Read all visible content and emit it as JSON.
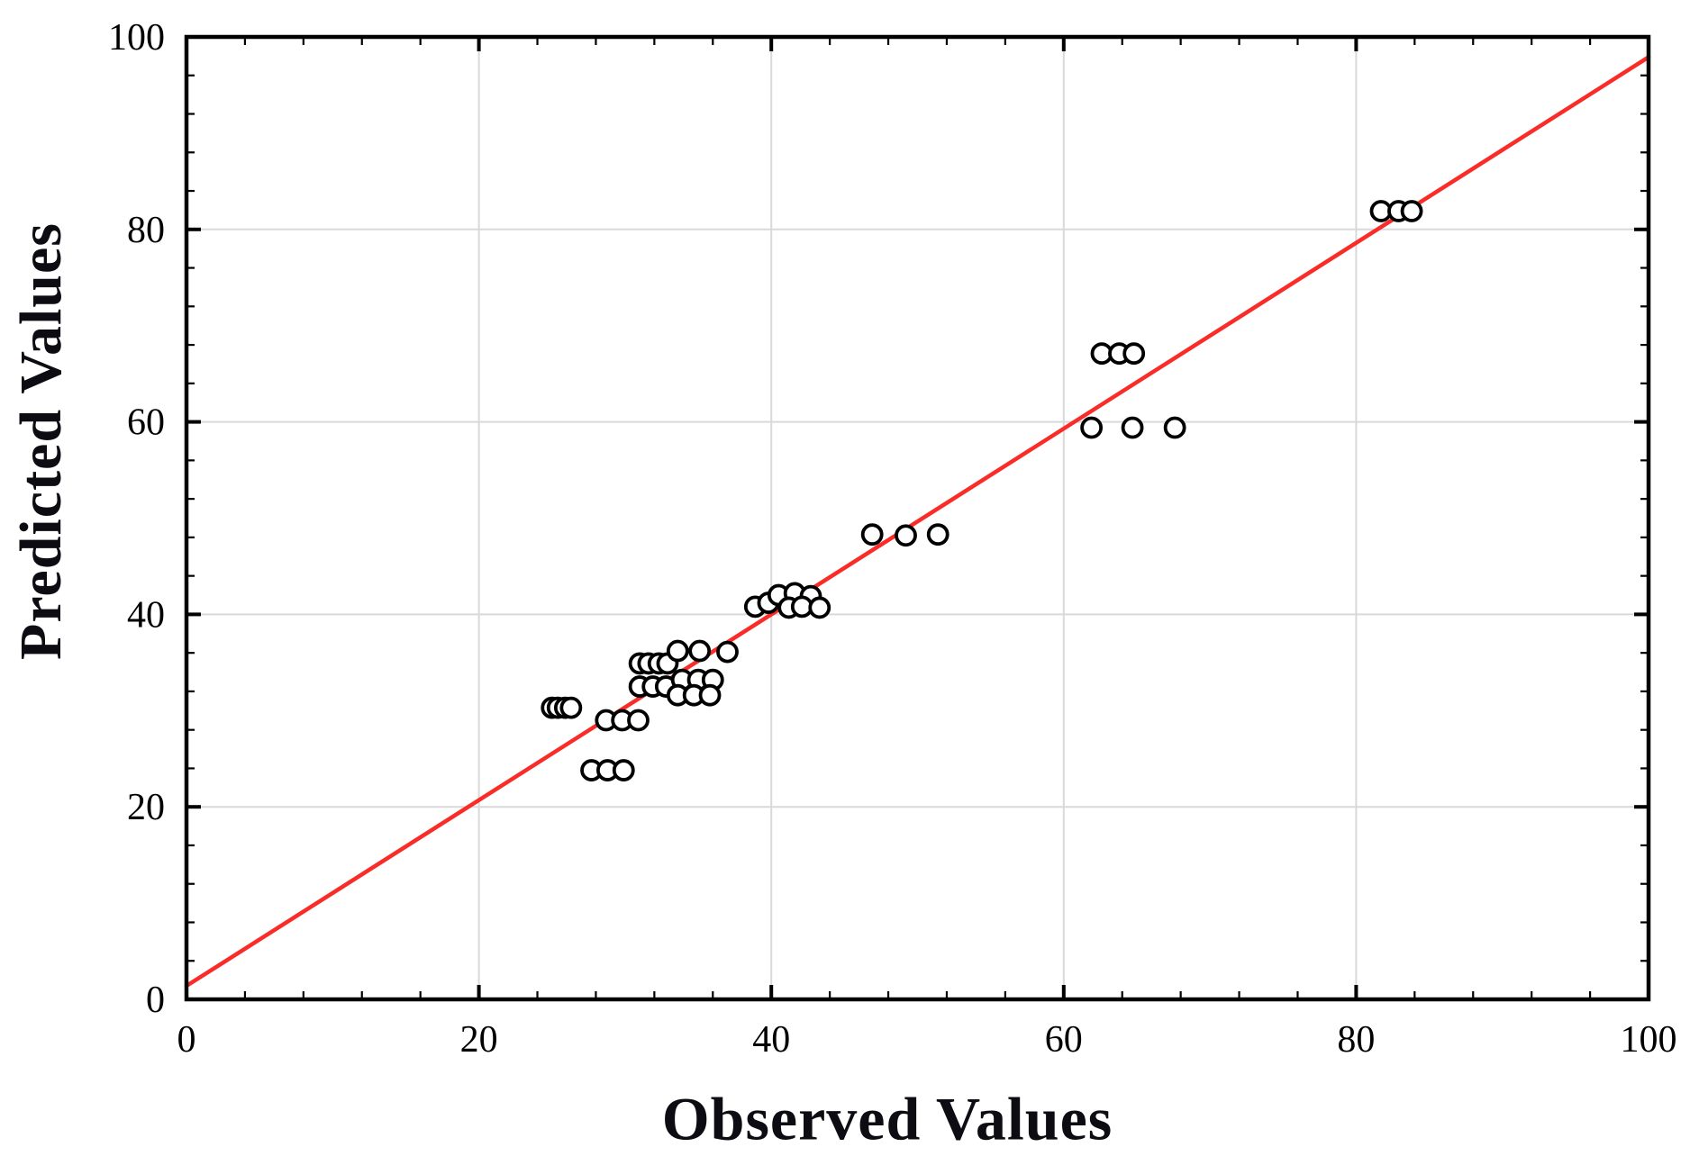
{
  "chart_data": {
    "type": "scatter",
    "title": "",
    "xlabel": "Observed Values",
    "ylabel": "Predicted Values",
    "xlim": [
      0,
      100
    ],
    "ylim": [
      0,
      100
    ],
    "major_ticks": [
      0,
      20,
      40,
      60,
      80,
      100
    ],
    "minor_tick_step": 4,
    "grid": true,
    "legend": "none",
    "marker": {
      "shape": "open-circle",
      "stroke_color": "#000000",
      "fill_color": "#ffffff"
    },
    "points": [
      [
        25.0,
        30.3
      ],
      [
        25.4,
        30.3
      ],
      [
        25.9,
        30.3
      ],
      [
        26.3,
        30.3
      ],
      [
        28.7,
        29.0
      ],
      [
        29.8,
        29.0
      ],
      [
        30.9,
        29.0
      ],
      [
        27.7,
        23.8
      ],
      [
        28.8,
        23.8
      ],
      [
        29.9,
        23.8
      ],
      [
        31.0,
        34.9
      ],
      [
        31.6,
        34.9
      ],
      [
        32.3,
        34.9
      ],
      [
        32.9,
        34.9
      ],
      [
        33.6,
        36.2
      ],
      [
        35.1,
        36.2
      ],
      [
        37.0,
        36.1
      ],
      [
        31.0,
        32.5
      ],
      [
        31.9,
        32.5
      ],
      [
        32.8,
        32.5
      ],
      [
        33.9,
        33.2
      ],
      [
        35.0,
        33.2
      ],
      [
        36.0,
        33.2
      ],
      [
        33.6,
        31.6
      ],
      [
        34.7,
        31.6
      ],
      [
        35.8,
        31.6
      ],
      [
        38.9,
        40.8
      ],
      [
        39.8,
        41.2
      ],
      [
        40.5,
        42.0
      ],
      [
        41.6,
        42.2
      ],
      [
        42.7,
        41.9
      ],
      [
        41.2,
        40.7
      ],
      [
        42.1,
        40.8
      ],
      [
        43.3,
        40.7
      ],
      [
        46.9,
        48.3
      ],
      [
        49.2,
        48.2
      ],
      [
        51.4,
        48.3
      ],
      [
        62.6,
        67.1
      ],
      [
        63.8,
        67.1
      ],
      [
        64.8,
        67.1
      ],
      [
        61.9,
        59.4
      ],
      [
        64.7,
        59.4
      ],
      [
        67.6,
        59.4
      ],
      [
        81.7,
        81.9
      ],
      [
        82.9,
        81.9
      ],
      [
        83.8,
        81.9
      ]
    ],
    "fit_line": {
      "x1": 0,
      "y1": 1.4,
      "x2": 100,
      "y2": 97.9
    },
    "colors": {
      "fit_line": "#f92c28",
      "grid": "#d9d9d9",
      "axis_box": "#000000",
      "tick_label": "#000000",
      "axis_title": "#0c0c12",
      "background": "#ffffff"
    }
  }
}
